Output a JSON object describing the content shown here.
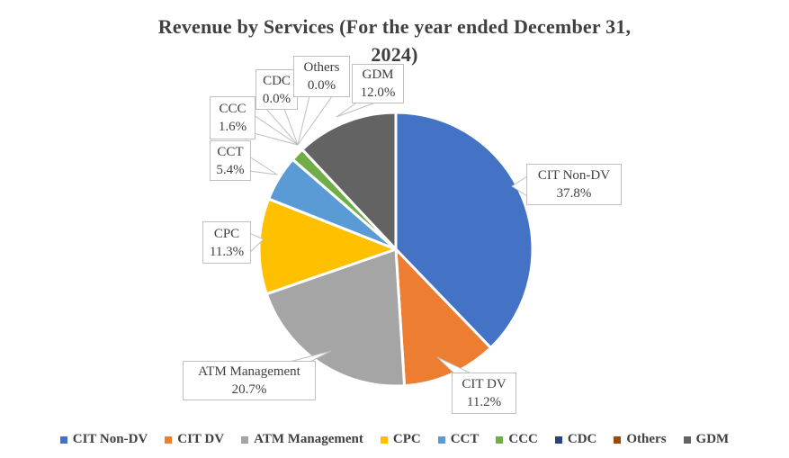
{
  "title_line1": "Revenue by Services (For the year ended December 31,",
  "title_line2": "2024)",
  "chart_data": {
    "type": "pie",
    "title": "Revenue by Services (For the year ended December 31, 2024)",
    "categories": [
      "CIT Non-DV",
      "CIT DV",
      "ATM Management",
      "CPC",
      "CCT",
      "CCC",
      "CDC",
      "Others",
      "GDM"
    ],
    "values": [
      37.8,
      11.2,
      20.7,
      11.3,
      5.4,
      1.6,
      0.0,
      0.0,
      12.0
    ],
    "value_labels": [
      "37.8%",
      "11.2%",
      "20.7%",
      "11.3%",
      "5.4%",
      "1.6%",
      "0.0%",
      "0.0%",
      "12.0%"
    ],
    "colors": [
      "#4472C4",
      "#ED7D31",
      "#A5A5A5",
      "#FFC000",
      "#5B9BD5",
      "#70AD47",
      "#264478",
      "#9E480E",
      "#636363"
    ],
    "start_angle_deg": 0,
    "direction": "clockwise",
    "slice_border_color": "#FFFFFF",
    "label_style": "callout-boxes",
    "legend_position": "bottom"
  },
  "callouts": {
    "cit_nondv": {
      "name": "CIT Non-DV",
      "pct": "37.8%"
    },
    "cit_dv": {
      "name": "CIT DV",
      "pct": "11.2%"
    },
    "atm": {
      "name": "ATM Management",
      "pct": "20.7%"
    },
    "cpc": {
      "name": "CPC",
      "pct": "11.3%"
    },
    "cct": {
      "name": "CCT",
      "pct": "5.4%"
    },
    "ccc": {
      "name": "CCC",
      "pct": "1.6%"
    },
    "cdc": {
      "name": "CDC",
      "pct": "0.0%"
    },
    "others": {
      "name": "Others",
      "pct": "0.0%"
    },
    "gdm": {
      "name": "GDM",
      "pct": "12.0%"
    }
  },
  "legend": {
    "items": [
      {
        "label": "CIT Non-DV",
        "color": "#4472C4"
      },
      {
        "label": "CIT DV",
        "color": "#ED7D31"
      },
      {
        "label": "ATM Management",
        "color": "#A5A5A5"
      },
      {
        "label": "CPC",
        "color": "#FFC000"
      },
      {
        "label": "CCT",
        "color": "#5B9BD5"
      },
      {
        "label": "CCC",
        "color": "#70AD47"
      },
      {
        "label": "CDC",
        "color": "#264478"
      },
      {
        "label": "Others",
        "color": "#9E480E"
      },
      {
        "label": "GDM",
        "color": "#636363"
      }
    ]
  },
  "style": {
    "accent_border": "#BFBFBF",
    "text_color": "#404040",
    "background": "#FFFFFF"
  }
}
